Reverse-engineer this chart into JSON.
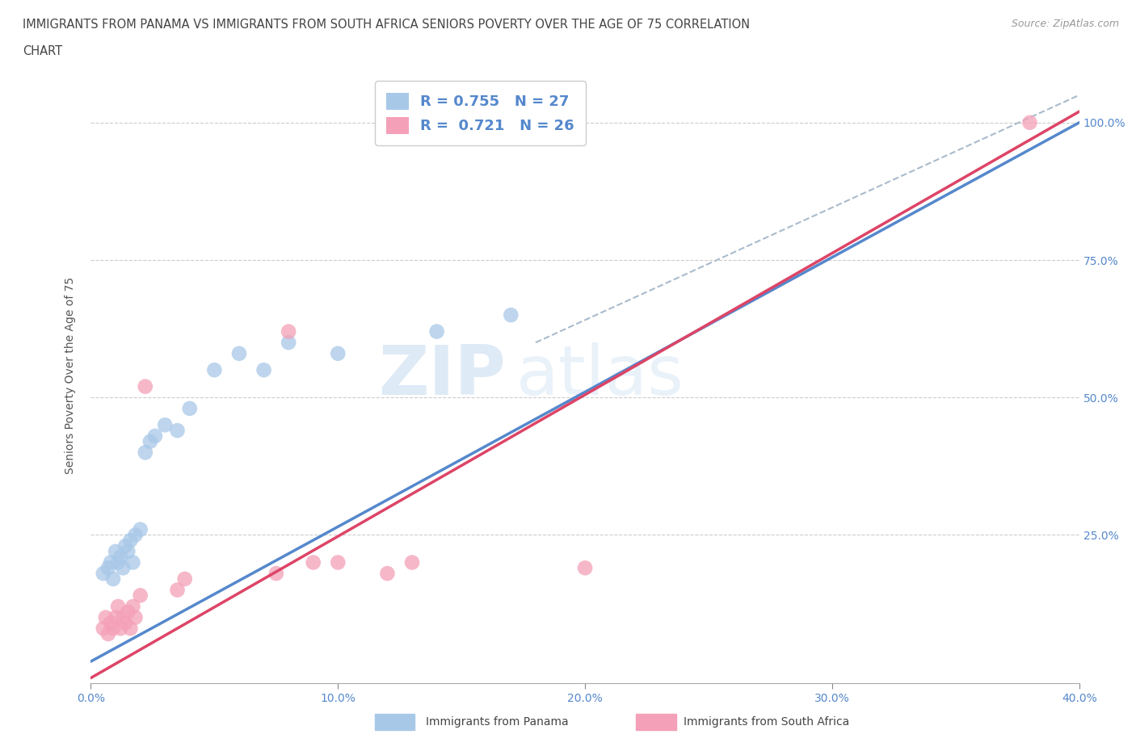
{
  "title_line1": "IMMIGRANTS FROM PANAMA VS IMMIGRANTS FROM SOUTH AFRICA SENIORS POVERTY OVER THE AGE OF 75 CORRELATION",
  "title_line2": "CHART",
  "source": "Source: ZipAtlas.com",
  "ylabel": "Seniors Poverty Over the Age of 75",
  "legend_labels": [
    "Immigrants from Panama",
    "Immigrants from South Africa"
  ],
  "R_panama": 0.755,
  "N_panama": 27,
  "R_sa": 0.721,
  "N_sa": 26,
  "color_panama": "#a8c8e8",
  "color_sa": "#f4a0b8",
  "color_panama_line": "#5588cc",
  "color_sa_line": "#dd4466",
  "color_dashed": "#aabbcc",
  "xlim": [
    0.0,
    0.4
  ],
  "ylim": [
    -0.02,
    1.1
  ],
  "xticks": [
    0.0,
    0.1,
    0.2,
    0.3,
    0.4
  ],
  "xtick_labels": [
    "0.0%",
    "10.0%",
    "20.0%",
    "30.0%",
    "40.0%"
  ],
  "yticks": [
    0.0,
    0.25,
    0.5,
    0.75,
    1.0
  ],
  "ytick_labels_right": [
    "",
    "25.0%",
    "50.0%",
    "75.0%",
    "100.0%"
  ],
  "watermark_zi": "ZIP",
  "watermark_atlas": "atlas",
  "panama_x": [
    0.005,
    0.007,
    0.008,
    0.009,
    0.01,
    0.011,
    0.012,
    0.013,
    0.014,
    0.015,
    0.016,
    0.017,
    0.018,
    0.02,
    0.022,
    0.024,
    0.026,
    0.03,
    0.035,
    0.04,
    0.05,
    0.06,
    0.07,
    0.08,
    0.1,
    0.14,
    0.17
  ],
  "panama_y": [
    0.18,
    0.19,
    0.2,
    0.17,
    0.22,
    0.2,
    0.21,
    0.19,
    0.23,
    0.22,
    0.24,
    0.2,
    0.25,
    0.26,
    0.4,
    0.42,
    0.43,
    0.45,
    0.44,
    0.48,
    0.55,
    0.58,
    0.55,
    0.6,
    0.58,
    0.62,
    0.65
  ],
  "sa_x": [
    0.005,
    0.006,
    0.007,
    0.008,
    0.009,
    0.01,
    0.011,
    0.012,
    0.013,
    0.014,
    0.015,
    0.016,
    0.017,
    0.018,
    0.02,
    0.022,
    0.035,
    0.038,
    0.075,
    0.08,
    0.09,
    0.1,
    0.12,
    0.13,
    0.2,
    0.38
  ],
  "sa_y": [
    0.08,
    0.1,
    0.07,
    0.09,
    0.08,
    0.1,
    0.12,
    0.08,
    0.1,
    0.09,
    0.11,
    0.08,
    0.12,
    0.1,
    0.14,
    0.52,
    0.15,
    0.17,
    0.18,
    0.62,
    0.2,
    0.2,
    0.18,
    0.2,
    0.19,
    1.0
  ],
  "panama_line_x0": 0.0,
  "panama_line_y0": 0.02,
  "panama_line_x1": 0.4,
  "panama_line_y1": 1.0,
  "sa_line_x0": 0.0,
  "sa_line_y0": -0.01,
  "sa_line_x1": 0.4,
  "sa_line_y1": 1.02,
  "dashed_line_x0": 0.18,
  "dashed_line_y0": 0.6,
  "dashed_line_x1": 0.4,
  "dashed_line_y1": 1.05
}
